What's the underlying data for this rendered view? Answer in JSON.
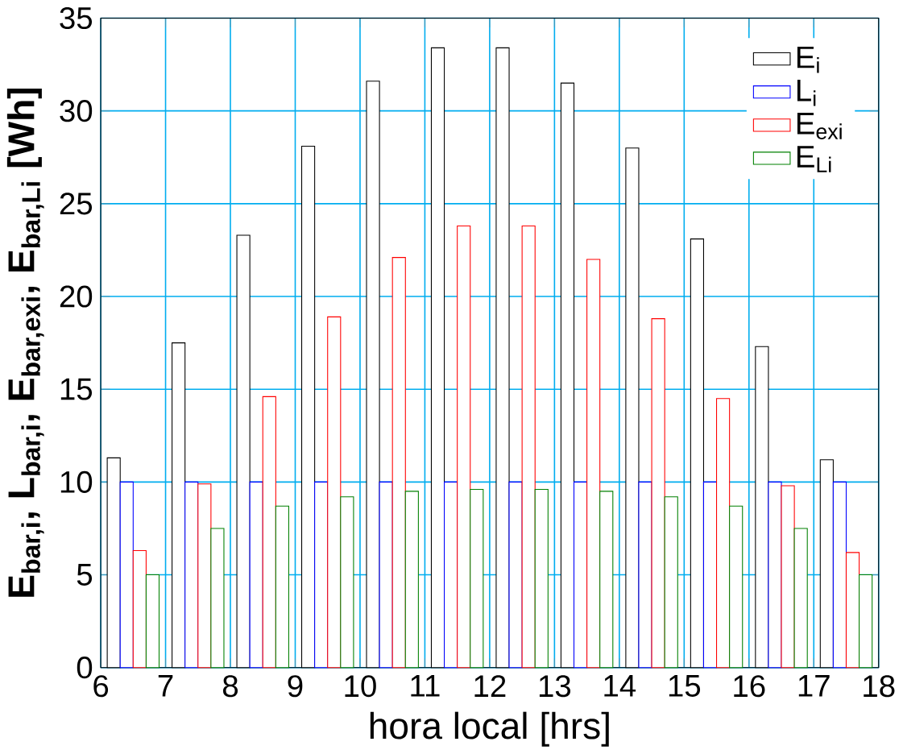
{
  "chart_data": {
    "type": "bar",
    "xlabel": "hora local [hrs]",
    "ylabel": "E$_{bar,i}$,  L$_{bar,i}$,  E$_{bar,exi}$,  E$_{bar,Li}$ [Wh]",
    "x": [
      6.5,
      7.5,
      8.5,
      9.5,
      10.5,
      11.5,
      12.5,
      13.5,
      14.5,
      15.5,
      16.5,
      17.5
    ],
    "series": [
      {
        "name": "E$_{i}$",
        "color": "#000000",
        "values": [
          11.3,
          17.5,
          23.3,
          28.1,
          31.6,
          33.4,
          33.4,
          31.5,
          28.0,
          23.1,
          17.3,
          11.2
        ]
      },
      {
        "name": "L$_{i}$",
        "color": "#0000ff",
        "values": [
          10,
          10,
          10,
          10,
          10,
          10,
          10,
          10,
          10,
          10,
          10,
          10
        ]
      },
      {
        "name": "E$_{exi}$",
        "color": "#ff0000",
        "values": [
          6.3,
          9.9,
          14.6,
          18.9,
          22.1,
          23.8,
          23.8,
          22.0,
          18.8,
          14.5,
          9.8,
          6.2
        ]
      },
      {
        "name": "E$_{Li}$",
        "color": "#008000",
        "values": [
          5.0,
          7.5,
          8.7,
          9.2,
          9.5,
          9.6,
          9.6,
          9.5,
          9.2,
          8.7,
          7.5,
          5.0
        ]
      }
    ],
    "xlim": [
      6,
      18
    ],
    "xticks": [
      6,
      7,
      8,
      9,
      10,
      11,
      12,
      13,
      14,
      15,
      16,
      17,
      18
    ],
    "ylim": [
      0,
      35
    ],
    "yticks": [
      0,
      5,
      10,
      15,
      20,
      25,
      30,
      35
    ],
    "grid": true,
    "legend": "top right"
  }
}
